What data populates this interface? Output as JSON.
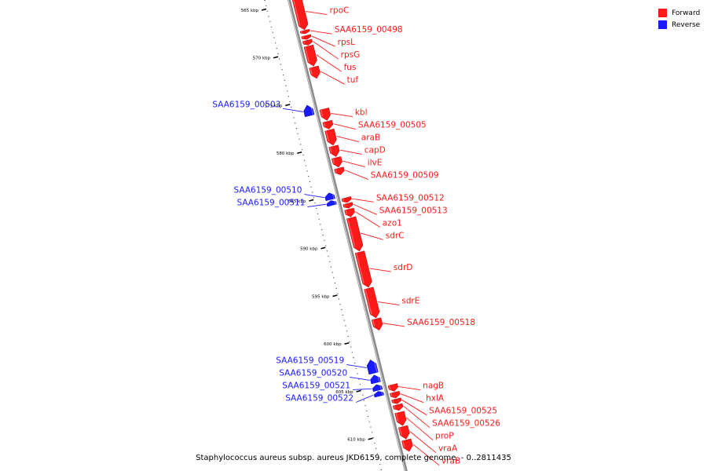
{
  "legend": {
    "forward": {
      "label": "Forward",
      "color": "#ff1a1a"
    },
    "reverse": {
      "label": "Reverse",
      "color": "#1a1aff"
    }
  },
  "caption": "Staphylococcus aureus subsp. aureus JKD6159, complete genome. - 0..2811435",
  "ruler": [
    {
      "label": "565 kbp",
      "kbp": 565
    },
    {
      "label": "570 kbp",
      "kbp": 570
    },
    {
      "label": "575 kbp",
      "kbp": 575
    },
    {
      "label": "580 kbp",
      "kbp": 580
    },
    {
      "label": "585 kbp",
      "kbp": 585
    },
    {
      "label": "590 kbp",
      "kbp": 590
    },
    {
      "label": "595 kbp",
      "kbp": 595
    },
    {
      "label": "600 kbp",
      "kbp": 600
    },
    {
      "label": "605 kbp",
      "kbp": 605
    },
    {
      "label": "610 kbp",
      "kbp": 610
    }
  ],
  "genes": [
    {
      "name": "rpoC",
      "strand": "forward",
      "start_kbp": 564.4,
      "end_kbp": 568.0
    },
    {
      "name": "SAA6159_00498",
      "strand": "forward",
      "start_kbp": 568.05,
      "end_kbp": 568.4
    },
    {
      "name": "rpsL",
      "strand": "forward",
      "start_kbp": 568.6,
      "end_kbp": 569.0
    },
    {
      "name": "rpsG",
      "strand": "forward",
      "start_kbp": 569.1,
      "end_kbp": 569.6
    },
    {
      "name": "fus",
      "strand": "forward",
      "start_kbp": 569.7,
      "end_kbp": 571.8
    },
    {
      "name": "tuf",
      "strand": "forward",
      "start_kbp": 571.9,
      "end_kbp": 573.1
    },
    {
      "name": "SAA6159_00503",
      "strand": "reverse",
      "start_kbp": 575.5,
      "end_kbp": 576.6
    },
    {
      "name": "kbl",
      "strand": "forward",
      "start_kbp": 576.3,
      "end_kbp": 577.5
    },
    {
      "name": "SAA6159_00505",
      "strand": "forward",
      "start_kbp": 577.6,
      "end_kbp": 578.4
    },
    {
      "name": "araB",
      "strand": "forward",
      "start_kbp": 578.5,
      "end_kbp": 580.1
    },
    {
      "name": "capD",
      "strand": "forward",
      "start_kbp": 580.2,
      "end_kbp": 581.3
    },
    {
      "name": "ilvE",
      "strand": "forward",
      "start_kbp": 581.4,
      "end_kbp": 582.4
    },
    {
      "name": "SAA6159_00509",
      "strand": "forward",
      "start_kbp": 582.5,
      "end_kbp": 583.2
    },
    {
      "name": "SAA6159_00510",
      "strand": "reverse",
      "start_kbp": 584.7,
      "end_kbp": 585.4
    },
    {
      "name": "SAA6159_00511",
      "strand": "reverse",
      "start_kbp": 585.5,
      "end_kbp": 586.0
    },
    {
      "name": "SAA6159_00512",
      "strand": "forward",
      "start_kbp": 585.6,
      "end_kbp": 586.1
    },
    {
      "name": "SAA6159_00513",
      "strand": "forward",
      "start_kbp": 586.2,
      "end_kbp": 586.7
    },
    {
      "name": "azo1",
      "strand": "forward",
      "start_kbp": 586.8,
      "end_kbp": 587.6
    },
    {
      "name": "sdrC",
      "strand": "forward",
      "start_kbp": 587.7,
      "end_kbp": 591.2
    },
    {
      "name": "sdrD",
      "strand": "forward",
      "start_kbp": 591.3,
      "end_kbp": 595.0
    },
    {
      "name": "sdrE",
      "strand": "forward",
      "start_kbp": 595.1,
      "end_kbp": 598.2
    },
    {
      "name": "SAA6159_00518",
      "strand": "forward",
      "start_kbp": 598.3,
      "end_kbp": 599.5
    },
    {
      "name": "SAA6159_00519",
      "strand": "reverse",
      "start_kbp": 602.2,
      "end_kbp": 603.6
    },
    {
      "name": "SAA6159_00520",
      "strand": "reverse",
      "start_kbp": 603.8,
      "end_kbp": 604.6
    },
    {
      "name": "SAA6159_00521",
      "strand": "reverse",
      "start_kbp": 604.8,
      "end_kbp": 605.4
    },
    {
      "name": "SAA6159_00522",
      "strand": "reverse",
      "start_kbp": 605.5,
      "end_kbp": 606.0
    },
    {
      "name": "nagB",
      "strand": "forward",
      "start_kbp": 605.2,
      "end_kbp": 605.9
    },
    {
      "name": "hxlA",
      "strand": "forward",
      "start_kbp": 606.0,
      "end_kbp": 606.6
    },
    {
      "name": "SAA6159_00525",
      "strand": "forward",
      "start_kbp": 606.7,
      "end_kbp": 607.2
    },
    {
      "name": "SAA6159_00526",
      "strand": "forward",
      "start_kbp": 607.3,
      "end_kbp": 607.9
    },
    {
      "name": "proP",
      "strand": "forward",
      "start_kbp": 608.1,
      "end_kbp": 609.5
    },
    {
      "name": "vraA",
      "strand": "forward",
      "start_kbp": 609.6,
      "end_kbp": 610.9
    },
    {
      "name": "vraB",
      "strand": "forward",
      "start_kbp": 611.0,
      "end_kbp": 612.2
    }
  ]
}
